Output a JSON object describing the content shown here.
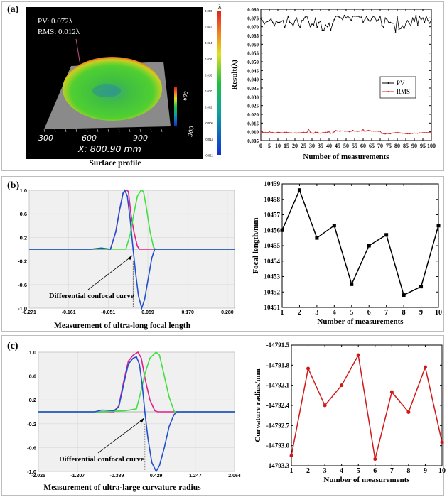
{
  "panels": {
    "a": {
      "label": "(a)",
      "caption": "Surface profile"
    },
    "b": {
      "label": "(b)",
      "caption": "Measurement of ultra-long focal length"
    },
    "c": {
      "label": "(c)",
      "caption": "Measurement of ultra-large curvature radius"
    }
  },
  "surface": {
    "pv_text": "PV:    0.072λ",
    "rms_text": "RMS: 0.012λ",
    "x_axis_text": "X: 800.90 mm",
    "x_ticks": [
      "300",
      "600",
      "900"
    ],
    "y_ticks": [
      "300",
      "600"
    ],
    "unit_symbol": "λ",
    "colorbar_ticks": [
      "0.050",
      "0.042",
      "0.034",
      "0.026",
      "0.018",
      "0.010",
      "0.002",
      "-0.006",
      "-0.014",
      "-0.022"
    ],
    "colors": {
      "low": "#1030d0",
      "mid": "#20c040",
      "high": "#e02020"
    }
  },
  "chart_data": [
    {
      "id": "pv_rms",
      "type": "line",
      "xlabel": "Number of measurements",
      "ylabel": "Result(λ)",
      "xlim": [
        0,
        100
      ],
      "ylim": [
        0.005,
        0.08
      ],
      "xticks": [
        "0",
        "5",
        "10",
        "15",
        "20",
        "25",
        "30",
        "35",
        "40",
        "45",
        "50",
        "55",
        "60",
        "65",
        "70",
        "75",
        "80",
        "85",
        "90",
        "95",
        "100"
      ],
      "yticks": [
        "0.005",
        "0.010",
        "0.015",
        "0.020",
        "0.025",
        "0.030",
        "0.035",
        "0.040",
        "0.045",
        "0.050",
        "0.055",
        "0.060",
        "0.065",
        "0.070",
        "0.075",
        "0.080"
      ],
      "legend": "right",
      "series": [
        {
          "name": "PV",
          "color": "#000000",
          "values": [
            0.0745,
            0.0735,
            0.0715,
            0.0725,
            0.073,
            0.0735,
            0.0745,
            0.0725,
            0.0705,
            0.073,
            0.0725,
            0.0725,
            0.073,
            0.0735,
            0.0695,
            0.0725,
            0.076,
            0.0725,
            0.072,
            0.0705,
            0.0735,
            0.075,
            0.0715,
            0.0695,
            0.0735,
            0.074,
            0.0755,
            0.076,
            0.073,
            0.07,
            0.0715,
            0.071,
            0.075,
            0.0695,
            0.0725,
            0.073,
            0.068,
            0.068,
            0.071,
            0.07,
            0.072,
            0.068,
            0.0715,
            0.074,
            0.076,
            0.076,
            0.0755,
            0.075,
            0.074,
            0.0765,
            0.075,
            0.076,
            0.075,
            0.0735,
            0.076,
            0.076,
            0.076,
            0.076,
            0.0755,
            0.0755,
            0.0725,
            0.074,
            0.076,
            0.074,
            0.073,
            0.0745,
            0.076,
            0.075,
            0.073,
            0.074,
            0.076,
            0.071,
            0.0695,
            0.075,
            0.074,
            0.0725,
            0.0725,
            0.072,
            0.072,
            0.067,
            0.076,
            0.0685,
            0.069,
            0.0705,
            0.069,
            0.0715,
            0.0735,
            0.072,
            0.0705,
            0.075,
            0.073,
            0.0765,
            0.071,
            0.076,
            0.074,
            0.075,
            0.0725,
            0.076,
            0.0735,
            0.072,
            0.074
          ]
        },
        {
          "name": "RMS",
          "color": "#d02020",
          "values": [
            0.01,
            0.0098,
            0.0095,
            0.0097,
            0.0095,
            0.01,
            0.0097,
            0.0096,
            0.0093,
            0.0095,
            0.0097,
            0.0096,
            0.0095,
            0.0094,
            0.0097,
            0.0098,
            0.0095,
            0.0094,
            0.0094,
            0.0093,
            0.0094,
            0.0093,
            0.0095,
            0.0094,
            0.0095,
            0.0098,
            0.0095,
            0.0096,
            0.0115,
            0.0098,
            0.0093,
            0.0092,
            0.0098,
            0.0097,
            0.0093,
            0.0092,
            0.0094,
            0.0095,
            0.0097,
            0.0098,
            0.01,
            0.0092,
            0.0093,
            0.01,
            0.0107,
            0.0105,
            0.0104,
            0.0105,
            0.0105,
            0.0104,
            0.0104,
            0.0103,
            0.01,
            0.0104,
            0.0108,
            0.0104,
            0.0104,
            0.0103,
            0.0103,
            0.0105,
            0.0112,
            0.0102,
            0.0105,
            0.0108,
            0.0107,
            0.0104,
            0.0104,
            0.0103,
            0.0104,
            0.0103,
            0.0103,
            0.009,
            0.009,
            0.0088,
            0.009,
            0.009,
            0.0089,
            0.0093,
            0.0094,
            0.0095,
            0.0096,
            0.0096,
            0.0093,
            0.0092,
            0.0091,
            0.009,
            0.0089,
            0.0088,
            0.009,
            0.0091,
            0.0093,
            0.0091,
            0.0092,
            0.0094,
            0.0094,
            0.0095,
            0.0095,
            0.0096,
            0.0095,
            0.0094,
            0.0097
          ]
        }
      ]
    },
    {
      "id": "confocal_b",
      "type": "line",
      "xlim": [
        -0.271,
        0.3
      ],
      "ylim": [
        -1.0,
        1.0
      ],
      "xticks": [
        "-0.271",
        "-0.161",
        "-0.051",
        "0.059",
        "0.170",
        "0.280"
      ],
      "yticks": [
        "1.0",
        "0.6",
        "0.2",
        "-0.2",
        "-0.6",
        "-1.0"
      ],
      "grid": true,
      "annotation": {
        "text": "Differential confocal curve",
        "zero_crossing": 0.018
      },
      "series": [
        {
          "color": "#e0208a",
          "points": [
            [
              -0.271,
              0
            ],
            [
              -0.045,
              0
            ],
            [
              -0.03,
              0.3
            ],
            [
              -0.02,
              0.65
            ],
            [
              -0.01,
              0.95
            ],
            [
              0.0,
              1.0
            ],
            [
              0.005,
              0.98
            ],
            [
              0.012,
              0.6
            ],
            [
              0.02,
              0.3
            ],
            [
              0.03,
              0.05
            ],
            [
              0.036,
              0
            ],
            [
              0.3,
              0
            ]
          ]
        },
        {
          "color": "#40e040",
          "points": [
            [
              -0.271,
              0
            ],
            [
              -0.002,
              0
            ],
            [
              0.01,
              0.25
            ],
            [
              0.02,
              0.6
            ],
            [
              0.03,
              0.9
            ],
            [
              0.04,
              1.0
            ],
            [
              0.047,
              0.98
            ],
            [
              0.055,
              0.7
            ],
            [
              0.065,
              0.3
            ],
            [
              0.075,
              0.03
            ],
            [
              0.08,
              0
            ],
            [
              0.3,
              0
            ]
          ]
        },
        {
          "color": "#2050d0",
          "points": [
            [
              -0.271,
              0
            ],
            [
              -0.1,
              0
            ],
            [
              -0.07,
              0.02
            ],
            [
              -0.045,
              0
            ],
            [
              -0.03,
              0.3
            ],
            [
              -0.02,
              0.65
            ],
            [
              -0.01,
              0.95
            ],
            [
              -0.005,
              1.0
            ],
            [
              0.002,
              0.9
            ],
            [
              0.01,
              0.5
            ],
            [
              0.018,
              0
            ],
            [
              0.025,
              -0.4
            ],
            [
              0.033,
              -0.8
            ],
            [
              0.042,
              -1.0
            ],
            [
              0.05,
              -0.85
            ],
            [
              0.06,
              -0.5
            ],
            [
              0.07,
              -0.15
            ],
            [
              0.078,
              0
            ],
            [
              0.3,
              0
            ]
          ]
        }
      ]
    },
    {
      "id": "focal_length",
      "type": "line",
      "xlabel": "Number of measurements",
      "ylabel": "Focal length/mm",
      "xlim": [
        1,
        10
      ],
      "ylim": [
        10451,
        10459
      ],
      "xticks": [
        "1",
        "2",
        "3",
        "4",
        "5",
        "6",
        "7",
        "8",
        "9",
        "10"
      ],
      "yticks": [
        "10451",
        "10452",
        "10453",
        "10454",
        "10455",
        "10456",
        "10457",
        "10458",
        "10459"
      ],
      "series": [
        {
          "color": "#000000",
          "marker": "square",
          "x": [
            1,
            2,
            3,
            4,
            5,
            6,
            7,
            8,
            9,
            10
          ],
          "values": [
            10456.0,
            10458.6,
            10455.5,
            10456.3,
            10452.5,
            10455.0,
            10455.7,
            10451.8,
            10452.35,
            10456.3
          ]
        }
      ]
    },
    {
      "id": "confocal_c",
      "type": "line",
      "xlim": [
        -2.025,
        2.064
      ],
      "ylim": [
        -1.0,
        1.0
      ],
      "xticks": [
        "-2.025",
        "-1.207",
        "-0.389",
        "0.429",
        "1.247",
        "2.064"
      ],
      "yticks": [
        "1.0",
        "0.6",
        "0.2",
        "-0.2",
        "-0.6",
        "-1.0"
      ],
      "grid": true,
      "annotation": {
        "text": "Differential confocal curve",
        "zero_crossing": 0.195
      },
      "series": [
        {
          "color": "#e0208a",
          "points": [
            [
              -2.025,
              0
            ],
            [
              -0.45,
              0
            ],
            [
              -0.35,
              0.1
            ],
            [
              -0.25,
              0.5
            ],
            [
              -0.15,
              0.85
            ],
            [
              -0.05,
              0.95
            ],
            [
              0.05,
              1.0
            ],
            [
              0.12,
              0.9
            ],
            [
              0.2,
              0.55
            ],
            [
              0.3,
              0.2
            ],
            [
              0.4,
              0.02
            ],
            [
              0.46,
              0
            ],
            [
              2.064,
              0
            ]
          ]
        },
        {
          "color": "#40e040",
          "points": [
            [
              -2.025,
              0
            ],
            [
              -0.7,
              0
            ],
            [
              -0.2,
              0.02
            ],
            [
              0.02,
              0.05
            ],
            [
              0.1,
              0.3
            ],
            [
              0.2,
              0.65
            ],
            [
              0.3,
              0.9
            ],
            [
              0.43,
              1.0
            ],
            [
              0.5,
              0.95
            ],
            [
              0.6,
              0.6
            ],
            [
              0.7,
              0.25
            ],
            [
              0.8,
              0.02
            ],
            [
              0.82,
              0
            ],
            [
              2.064,
              0
            ]
          ]
        },
        {
          "color": "#2050d0",
          "points": [
            [
              -2.025,
              0
            ],
            [
              -0.85,
              0
            ],
            [
              -0.7,
              0.03
            ],
            [
              -0.45,
              0.02
            ],
            [
              -0.35,
              0.08
            ],
            [
              -0.25,
              0.45
            ],
            [
              -0.15,
              0.8
            ],
            [
              -0.05,
              0.9
            ],
            [
              0.02,
              0.92
            ],
            [
              0.08,
              0.8
            ],
            [
              0.14,
              0.45
            ],
            [
              0.195,
              0
            ],
            [
              0.26,
              -0.45
            ],
            [
              0.34,
              -0.85
            ],
            [
              0.43,
              -1.0
            ],
            [
              0.5,
              -0.9
            ],
            [
              0.6,
              -0.6
            ],
            [
              0.7,
              -0.25
            ],
            [
              0.8,
              -0.05
            ],
            [
              0.86,
              0
            ],
            [
              2.064,
              0
            ]
          ]
        }
      ]
    },
    {
      "id": "curvature_radius",
      "type": "line",
      "xlabel": "Number of measurements",
      "ylabel": "Curvature radius/mm",
      "xlim": [
        1,
        10
      ],
      "ylim": [
        -14793.3,
        -14791.5
      ],
      "xticks": [
        "1",
        "2",
        "3",
        "4",
        "5",
        "6",
        "7",
        "8",
        "9",
        "10"
      ],
      "yticks": [
        "-14791.5",
        "-14791.8",
        "-14792.1",
        "-14792.4",
        "-14792.7",
        "-14793.0",
        "-14793.3"
      ],
      "series": [
        {
          "color": "#d01818",
          "marker": "circle",
          "x": [
            1,
            2,
            3,
            4,
            5,
            6,
            7,
            8,
            9,
            10
          ],
          "values": [
            -14793.15,
            -14791.85,
            -14792.4,
            -14792.1,
            -14791.65,
            -14793.2,
            -14792.2,
            -14792.5,
            -14791.83,
            -14792.95
          ]
        }
      ]
    }
  ]
}
